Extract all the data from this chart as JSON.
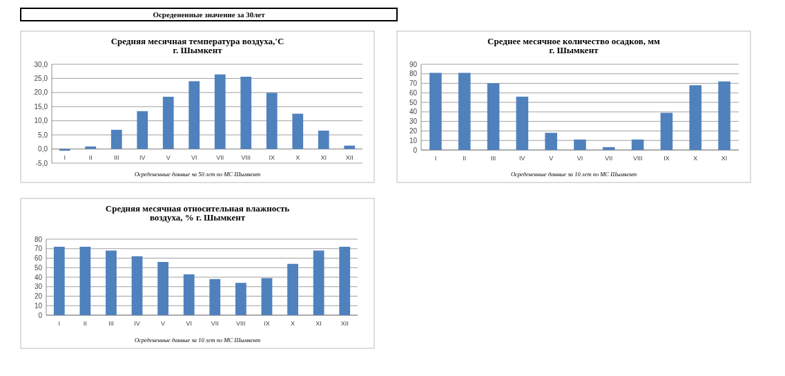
{
  "chart_data": [
    {
      "type": "other",
      "title": "Осредененные  значение за 30лет"
    },
    {
      "type": "bar",
      "title": "Средняя месячная температура воздуха,'С\nг. Шымкент",
      "categories": [
        "I",
        "II",
        "III",
        "IV",
        "V",
        "VI",
        "VII",
        "VIII",
        "IX",
        "X",
        "XI",
        "XII"
      ],
      "values": [
        -0.6,
        0.9,
        6.8,
        13.4,
        18.5,
        24,
        26.4,
        25.6,
        19.9,
        12.5,
        6.5,
        1.2
      ],
      "color": "#4f81bd",
      "ylim": [
        -5,
        30
      ],
      "yticks": [
        {
          "value": -5,
          "label": "-5,0"
        },
        {
          "value": 0,
          "label": "0,0"
        },
        {
          "value": 5,
          "label": "5,0"
        },
        {
          "value": 10,
          "label": "10,0"
        },
        {
          "value": 15,
          "label": "15,0"
        },
        {
          "value": 20,
          "label": "20,0"
        },
        {
          "value": 25,
          "label": "25,0"
        },
        {
          "value": 30,
          "label": "30,0"
        }
      ],
      "grid": "y",
      "annotations": [
        "Осредененные  данные за 50 лет по МС Шымкент"
      ]
    },
    {
      "type": "bar",
      "title": "Среднее месячное количество осадков, мм\nг. Шымкент",
      "categories": [
        "I",
        "II",
        "III",
        "IV",
        "V",
        "VI",
        "VII",
        "VIII",
        "IX",
        "X",
        "XI"
      ],
      "values": [
        81,
        81,
        70,
        56,
        18,
        11,
        3,
        11,
        39,
        68,
        72
      ],
      "color": "#4f81bd",
      "ylim": [
        0,
        90
      ],
      "yticks": [
        0,
        10,
        20,
        30,
        40,
        50,
        60,
        70,
        80,
        90
      ],
      "grid": "y",
      "annotations": [
        "Осредененные  данные за 10 лет по МС Шымкент"
      ]
    },
    {
      "type": "bar",
      "title": "Средняя месячная относительная влажность\nвоздуха, % г. Шымкент",
      "categories": [
        "I",
        "II",
        "III",
        "IV",
        "V",
        "VI",
        "VII",
        "VIII",
        "IX",
        "X",
        "XI",
        "XII"
      ],
      "values": [
        72,
        72,
        68,
        62,
        56,
        43,
        38,
        34,
        39,
        54,
        68,
        72
      ],
      "color": "#4f81bd",
      "ylim": [
        0,
        80
      ],
      "yticks": [
        0,
        10,
        20,
        30,
        40,
        50,
        60,
        70,
        80
      ],
      "grid": "y",
      "annotations": [
        "Осредененные  данные за 10 лет по МС Шымкент"
      ]
    }
  ]
}
